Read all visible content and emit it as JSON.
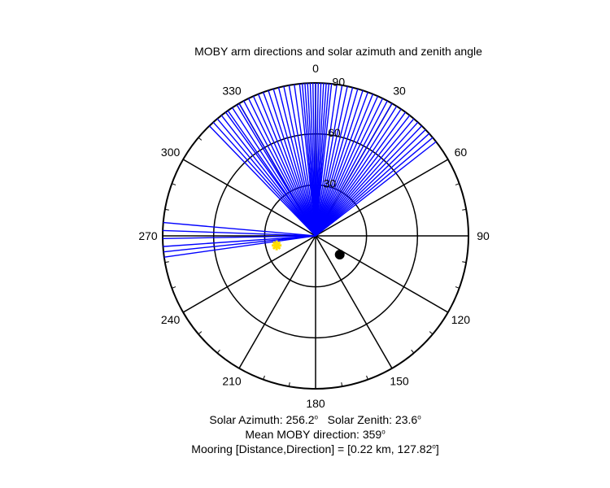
{
  "chart_data": {
    "type": "polar",
    "title": "MOBY arm directions and solar azimuth and zenith angle",
    "angle_ticks": [
      0,
      30,
      60,
      90,
      120,
      150,
      180,
      210,
      240,
      270,
      300,
      330
    ],
    "angle_tick_labels": [
      "0",
      "30",
      "60",
      "90",
      "120",
      "150",
      "180",
      "210",
      "240",
      "270",
      "300",
      "330"
    ],
    "radial_max": 90,
    "radial_ticks": [
      30,
      60,
      90
    ],
    "radial_tick_labels": [
      "30",
      "60",
      "90"
    ],
    "radial_tick_angle": 5,
    "arm_directions_deg": [
      -44,
      -42,
      -40,
      -38,
      -36,
      -35,
      -33,
      -31,
      -30,
      -28,
      -26,
      -24,
      -22,
      -20,
      -18,
      -16,
      -14,
      -12,
      -10,
      -8,
      -6,
      -5,
      -4,
      -3,
      -2,
      -1,
      0,
      1,
      2,
      3,
      4,
      5,
      6,
      8,
      10,
      12,
      14,
      16,
      18,
      20,
      22,
      24,
      26,
      28,
      30,
      32,
      34,
      36,
      38,
      40,
      42,
      44,
      46,
      48,
      50,
      52,
      -98,
      -96,
      -94,
      -91,
      -88,
      -85
    ],
    "sun": {
      "azimuth": 256.2,
      "zenith": 23.6,
      "color": "#ffdd00"
    },
    "mooring": {
      "direction": 127.82,
      "radius_frac": 0.2,
      "color": "#000000"
    },
    "arm_color": "#0000ff"
  },
  "summary": {
    "line1_part1": "Solar Azimuth: 256.2",
    "line1_part2": "Solar Zenith: 23.6",
    "degree_mark": "o",
    "line2": "Mean MOBY direction: 359",
    "line3_part1": "Mooring [Distance,Direction] = [0.22 km, 127.82",
    "line3_part2": "]"
  }
}
